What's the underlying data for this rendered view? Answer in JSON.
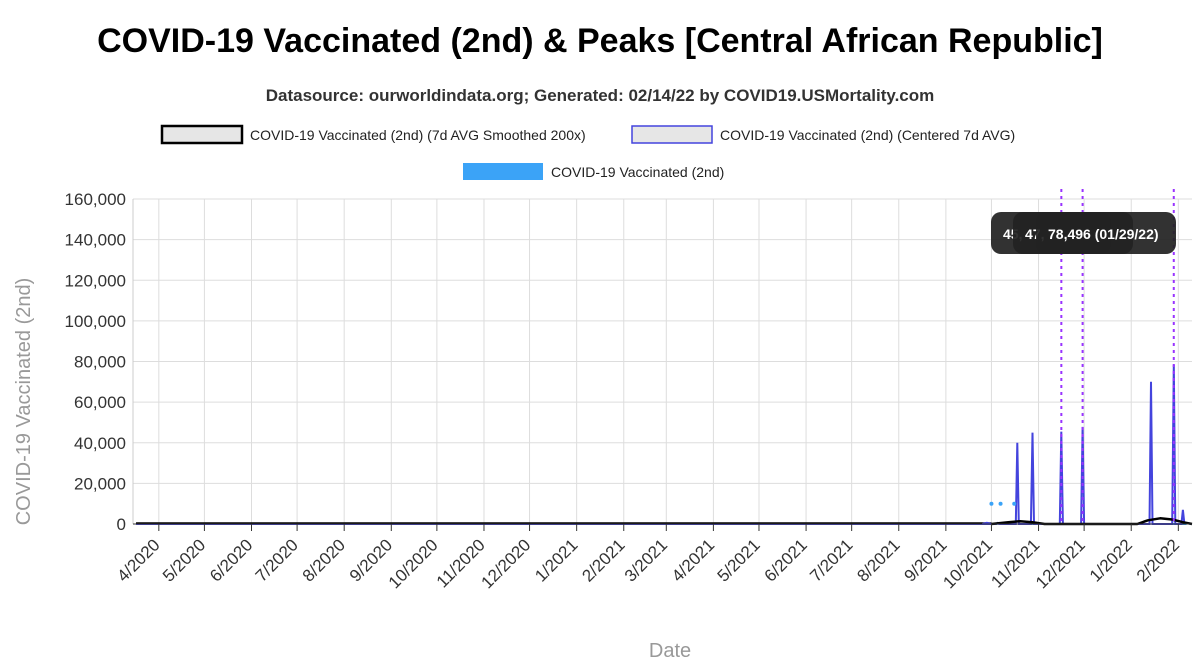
{
  "header": {
    "title": "COVID-19 Vaccinated (2nd) & Peaks [Central African Republic]",
    "subtitle": "Datasource: ourworldindata.org; Generated: 02/14/22 by COVID19.USMortality.com"
  },
  "chart_data": {
    "type": "line",
    "xlabel": "Date",
    "ylabel": "COVID-19 Vaccinated (2nd)",
    "ylim": [
      0,
      160000
    ],
    "y_ticks": [
      "0",
      "20,000",
      "40,000",
      "60,000",
      "80,000",
      "100,000",
      "120,000",
      "140,000",
      "160,000"
    ],
    "x_ticks": [
      "4/2020",
      "5/2020",
      "6/2020",
      "7/2020",
      "8/2020",
      "9/2020",
      "10/2020",
      "11/2020",
      "12/2020",
      "1/2021",
      "2/2021",
      "3/2021",
      "4/2021",
      "5/2021",
      "6/2021",
      "7/2021",
      "8/2021",
      "9/2021",
      "10/2021",
      "11/2021",
      "12/2021",
      "1/2022",
      "2/2022"
    ],
    "x_range": [
      "2020-03-15",
      "2022-02-10"
    ],
    "grid": true,
    "legend_placement": "top-center",
    "series": [
      {
        "name": "COVID-19 Vaccinated (2nd) (7d AVG Smoothed 200x)",
        "color": "#000000",
        "style": "line",
        "points": [
          [
            "2021-10-01",
            0
          ],
          [
            "2021-10-12",
            900
          ],
          [
            "2021-10-20",
            1400
          ],
          [
            "2021-10-28",
            900
          ],
          [
            "2021-11-05",
            0
          ],
          [
            "2021-12-01",
            0
          ],
          [
            "2022-01-05",
            0
          ],
          [
            "2022-01-12",
            1800
          ],
          [
            "2022-01-20",
            2800
          ],
          [
            "2022-01-28",
            2200
          ],
          [
            "2022-02-04",
            900
          ],
          [
            "2022-02-10",
            0
          ]
        ]
      },
      {
        "name": "COVID-19 Vaccinated (2nd) (Centered 7d AVG)",
        "color": "#4444dd",
        "style": "line",
        "points": [
          [
            "2021-09-25",
            0
          ],
          [
            "2021-09-28",
            600
          ],
          [
            "2021-10-01",
            0
          ],
          [
            "2021-10-04",
            0
          ],
          [
            "2021-10-05",
            500
          ],
          [
            "2021-10-06",
            0
          ],
          [
            "2021-10-17",
            0
          ],
          [
            "2021-10-18",
            40000
          ],
          [
            "2021-10-19",
            0
          ],
          [
            "2021-10-27",
            0
          ],
          [
            "2021-10-28",
            45000
          ],
          [
            "2021-10-29",
            0
          ],
          [
            "2021-11-15",
            0
          ],
          [
            "2021-11-16",
            45500
          ],
          [
            "2021-11-17",
            0
          ],
          [
            "2021-11-29",
            0
          ],
          [
            "2021-11-30",
            47800
          ],
          [
            "2021-12-01",
            0
          ],
          [
            "2022-01-13",
            0
          ],
          [
            "2022-01-14",
            70000
          ],
          [
            "2022-01-15",
            0
          ],
          [
            "2022-01-28",
            0
          ],
          [
            "2022-01-29",
            78496
          ],
          [
            "2022-01-30",
            0
          ],
          [
            "2022-02-03",
            0
          ],
          [
            "2022-02-04",
            7000
          ],
          [
            "2022-02-05",
            0
          ]
        ]
      },
      {
        "name": "COVID-19 Vaccinated (2nd)",
        "color": "#3ba3f7",
        "style": "points",
        "points": [
          [
            "2021-10-01",
            10000
          ],
          [
            "2021-10-07",
            10000
          ],
          [
            "2021-10-16",
            10000
          ]
        ]
      }
    ],
    "peaks": [
      {
        "date": "2021-11-16",
        "value": 45500
      },
      {
        "date": "2021-11-30",
        "value": 47800
      },
      {
        "date": "2022-01-29",
        "value": 78496
      }
    ],
    "tooltips": [
      "45,",
      "47,",
      "78,496 (01/29/22)"
    ]
  }
}
